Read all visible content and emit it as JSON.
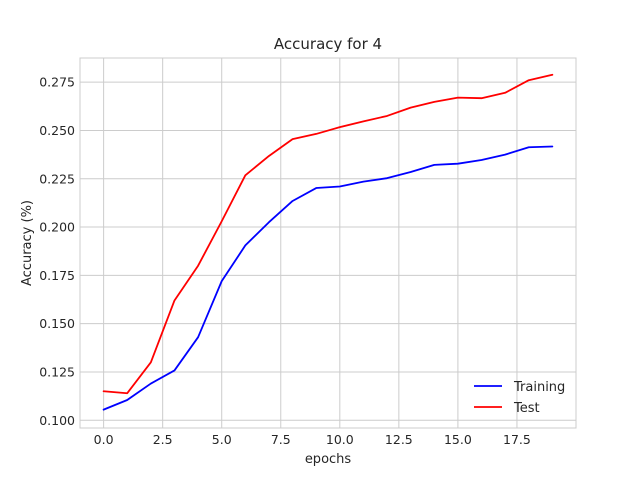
{
  "chart_data": {
    "type": "line",
    "title": "Accuracy for 4",
    "xlabel": "epochs",
    "ylabel": "Accuracy (%)",
    "xlim": [
      -1.0,
      20.0
    ],
    "ylim": [
      0.096,
      0.2875
    ],
    "x": [
      0,
      1,
      2,
      3,
      4,
      5,
      6,
      7,
      8,
      9,
      10,
      11,
      12,
      13,
      14,
      15,
      16,
      17,
      18,
      19
    ],
    "xticks": [
      0.0,
      2.5,
      5.0,
      7.5,
      10.0,
      12.5,
      15.0,
      17.5
    ],
    "xtick_labels": [
      "0.0",
      "2.5",
      "5.0",
      "7.5",
      "10.0",
      "12.5",
      "15.0",
      "17.5"
    ],
    "yticks": [
      0.1,
      0.125,
      0.15,
      0.175,
      0.2,
      0.225,
      0.25,
      0.275
    ],
    "ytick_labels": [
      "0.100",
      "0.125",
      "0.150",
      "0.175",
      "0.200",
      "0.225",
      "0.250",
      "0.275"
    ],
    "grid": true,
    "legend_position": "lower-right",
    "series": [
      {
        "name": "Training",
        "color": "#0000ff",
        "values": [
          0.1055,
          0.1105,
          0.119,
          0.1258,
          0.143,
          0.172,
          0.1905,
          0.2025,
          0.2135,
          0.2202,
          0.221,
          0.2235,
          0.2253,
          0.2285,
          0.2322,
          0.2328,
          0.2347,
          0.2375,
          0.2413,
          0.2417
        ]
      },
      {
        "name": "Test",
        "color": "#ff0000",
        "values": [
          0.115,
          0.114,
          0.13,
          0.162,
          0.18,
          0.203,
          0.2268,
          0.2368,
          0.2455,
          0.2482,
          0.2517,
          0.2547,
          0.2575,
          0.2618,
          0.2648,
          0.267,
          0.2667,
          0.2695,
          0.276,
          0.2788
        ]
      }
    ]
  }
}
